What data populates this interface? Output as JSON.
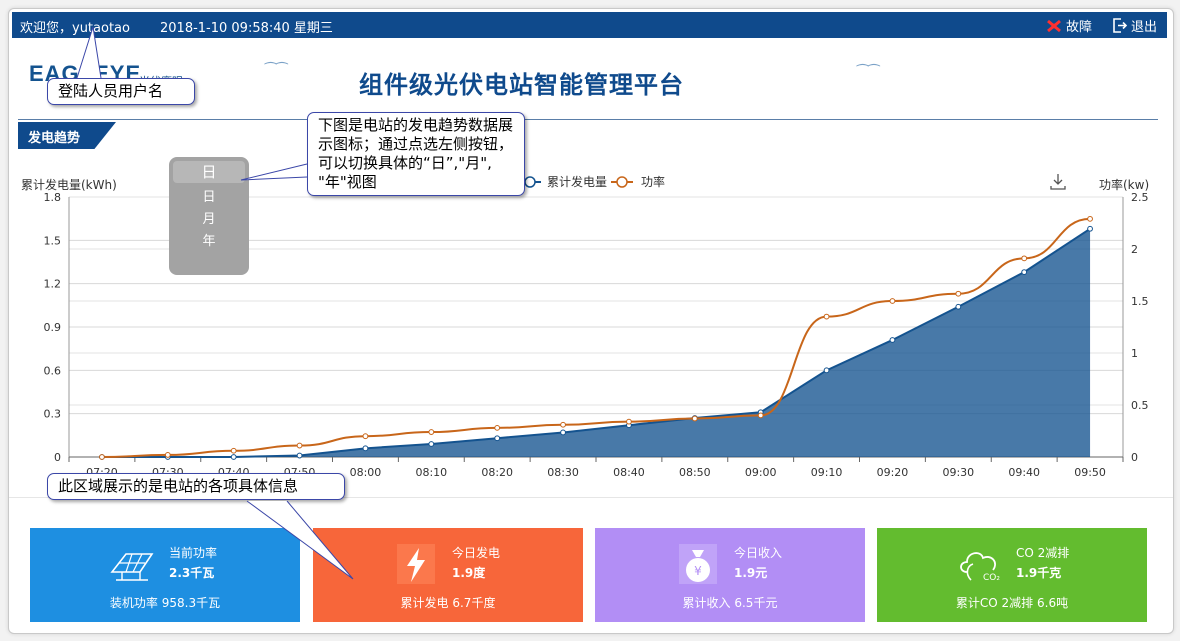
{
  "header": {
    "welcome": "欢迎您，yutaotao",
    "datetime": "2018-1-10   09:58:40 星期三",
    "fault_label": "故障",
    "logout_label": "退出"
  },
  "brand": {
    "logo_text": "EAGLEYE",
    "logo_sub": "光伏鹰眼",
    "title": "组件级光伏电站智能管理平台"
  },
  "section": {
    "title": "发电趋势"
  },
  "period_select": {
    "selected": "日",
    "options": [
      "日",
      "月",
      "年"
    ]
  },
  "callouts": {
    "user": "登陆人员用户名",
    "chart": "下图是电站的发电趋势数据展示图标；通过点选左侧按钮，可以切换具体的“日”,\"月\", \"年\"视图",
    "cards": "此区域展示的是电站的各项具体信息"
  },
  "chart_data": {
    "type": "line",
    "x": [
      "07:20",
      "07:30",
      "07:40",
      "07:50",
      "08:00",
      "08:10",
      "08:20",
      "08:30",
      "08:40",
      "08:50",
      "09:00",
      "09:10",
      "09:20",
      "09:30",
      "09:40",
      "09:50"
    ],
    "y_left_label": "累计发电量(kWh)",
    "y_right_label": "功率(kw)",
    "y_left_ticks": [
      "0",
      "0.3",
      "0.6",
      "0.9",
      "1.2",
      "1.5",
      "1.8"
    ],
    "y_right_ticks": [
      "0",
      "0.5",
      "1",
      "1.5",
      "2",
      "2.5"
    ],
    "ylim_left": [
      0,
      1.8
    ],
    "ylim_right": [
      0,
      2.5
    ],
    "series": [
      {
        "name": "累计发电量",
        "axis": "left",
        "kind": "area",
        "color": "#14538f",
        "values": [
          0,
          0,
          0,
          0.01,
          0.06,
          0.09,
          0.13,
          0.17,
          0.22,
          0.27,
          0.31,
          0.6,
          0.81,
          1.04,
          1.28,
          1.58
        ]
      },
      {
        "name": "功率",
        "axis": "right",
        "kind": "line",
        "color": "#c8661a",
        "values": [
          0,
          0.02,
          0.06,
          0.11,
          0.2,
          0.24,
          0.28,
          0.31,
          0.34,
          0.37,
          0.4,
          1.35,
          1.5,
          1.57,
          1.91,
          2.29
        ]
      }
    ],
    "grid": true,
    "legend": "top-center"
  },
  "cards": [
    {
      "label": "当前功率",
      "value": "2.3千瓦",
      "footer": "装机功率  958.3千瓦",
      "color": "#1e8fe1",
      "icon": "solar-panel-icon"
    },
    {
      "label": "今日发电",
      "value": "1.9度",
      "footer": "累计发电  6.7千度",
      "color": "#f7663a",
      "icon": "lightning-icon"
    },
    {
      "label": "今日收入",
      "value": "1.9元",
      "footer": "累计收入  6.5千元",
      "color": "#b28ef5",
      "icon": "money-bag-icon"
    },
    {
      "label": "CO 2减排",
      "value": "1.9千克",
      "footer": "累计CO 2减排  6.6吨",
      "color": "#63bc2f",
      "icon": "co2-cloud-icon"
    }
  ]
}
